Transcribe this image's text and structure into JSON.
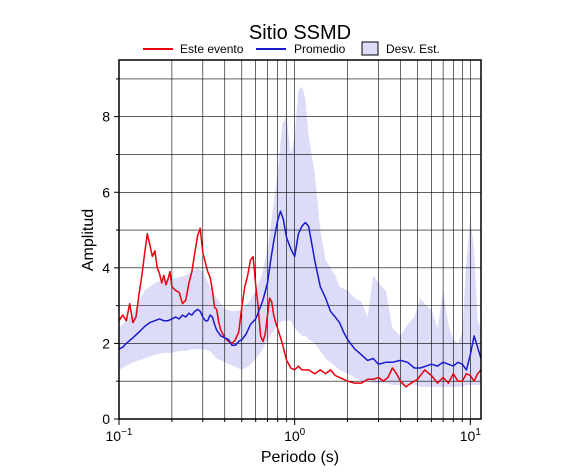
{
  "chart_data": {
    "type": "line",
    "title": "Sitio SSMD",
    "xlabel": "Periodo (s)",
    "ylabel": "Amplitud",
    "xscale": "log",
    "xlim": [
      0.1,
      11.5
    ],
    "ylim": [
      0,
      9.5
    ],
    "grid": true,
    "legend_position": "top",
    "x_ticks": [
      {
        "value": 0.1,
        "base": "10",
        "exp": "−1"
      },
      {
        "value": 1,
        "base": "10",
        "exp": "0"
      },
      {
        "value": 10,
        "base": "10",
        "exp": "1"
      }
    ],
    "y_ticks": [
      0,
      2,
      4,
      6,
      8
    ],
    "series": [
      {
        "name": "Este evento",
        "color": "#e8000b",
        "x": [
          0.1,
          0.105,
          0.11,
          0.115,
          0.12,
          0.125,
          0.13,
          0.135,
          0.14,
          0.145,
          0.15,
          0.155,
          0.16,
          0.165,
          0.17,
          0.175,
          0.18,
          0.185,
          0.19,
          0.195,
          0.2,
          0.21,
          0.22,
          0.23,
          0.24,
          0.25,
          0.26,
          0.27,
          0.28,
          0.29,
          0.3,
          0.31,
          0.32,
          0.33,
          0.34,
          0.35,
          0.36,
          0.37,
          0.38,
          0.4,
          0.42,
          0.44,
          0.46,
          0.48,
          0.5,
          0.52,
          0.54,
          0.56,
          0.58,
          0.6,
          0.62,
          0.64,
          0.66,
          0.68,
          0.7,
          0.72,
          0.74,
          0.76,
          0.78,
          0.8,
          0.85,
          0.9,
          0.95,
          1.0,
          1.05,
          1.1,
          1.2,
          1.3,
          1.4,
          1.5,
          1.6,
          1.7,
          1.8,
          1.9,
          2.0,
          2.2,
          2.4,
          2.6,
          2.8,
          3.0,
          3.2,
          3.4,
          3.6,
          3.8,
          4.0,
          4.3,
          4.6,
          5.0,
          5.5,
          6.0,
          6.5,
          7.0,
          7.5,
          8.0,
          8.5,
          9.0,
          9.5,
          10.0,
          10.5,
          11.0,
          11.5
        ],
        "values": [
          2.6,
          2.75,
          2.6,
          3.05,
          2.55,
          2.7,
          3.3,
          3.8,
          4.4,
          4.9,
          4.6,
          4.3,
          4.45,
          4.0,
          3.85,
          3.6,
          3.8,
          3.55,
          3.7,
          3.9,
          3.5,
          3.4,
          3.35,
          3.05,
          3.15,
          3.6,
          3.9,
          4.4,
          4.85,
          5.05,
          4.4,
          4.15,
          3.9,
          3.75,
          3.4,
          2.95,
          2.9,
          2.55,
          2.35,
          2.15,
          2.05,
          2.0,
          2.1,
          2.3,
          2.95,
          3.5,
          3.8,
          4.2,
          4.3,
          3.55,
          2.95,
          2.2,
          2.05,
          2.25,
          2.75,
          3.2,
          3.1,
          2.75,
          2.55,
          2.4,
          2.0,
          1.55,
          1.35,
          1.3,
          1.4,
          1.3,
          1.3,
          1.2,
          1.3,
          1.2,
          1.3,
          1.15,
          1.1,
          1.05,
          1.0,
          0.95,
          0.95,
          1.05,
          1.05,
          1.1,
          1.0,
          1.1,
          1.35,
          1.2,
          1.0,
          0.85,
          0.95,
          1.05,
          1.3,
          1.15,
          0.95,
          1.1,
          0.95,
          1.2,
          1.0,
          1.0,
          1.2,
          1.15,
          1.0,
          1.2,
          1.3
        ]
      },
      {
        "name": "Promedio",
        "color": "#1a1acd",
        "x": [
          0.1,
          0.105,
          0.11,
          0.12,
          0.13,
          0.14,
          0.15,
          0.16,
          0.17,
          0.18,
          0.19,
          0.2,
          0.21,
          0.22,
          0.23,
          0.24,
          0.25,
          0.26,
          0.27,
          0.28,
          0.29,
          0.3,
          0.31,
          0.32,
          0.33,
          0.34,
          0.35,
          0.36,
          0.38,
          0.4,
          0.42,
          0.44,
          0.46,
          0.48,
          0.5,
          0.53,
          0.56,
          0.6,
          0.63,
          0.66,
          0.7,
          0.73,
          0.76,
          0.8,
          0.83,
          0.86,
          0.9,
          0.95,
          1.0,
          1.05,
          1.1,
          1.15,
          1.2,
          1.25,
          1.3,
          1.4,
          1.5,
          1.6,
          1.7,
          1.8,
          1.9,
          2.0,
          2.2,
          2.4,
          2.6,
          2.8,
          3.0,
          3.3,
          3.6,
          4.0,
          4.4,
          4.8,
          5.2,
          5.6,
          6.0,
          6.5,
          7.0,
          7.5,
          8.0,
          8.5,
          9.0,
          9.5,
          10.0,
          10.5,
          11.0,
          11.5
        ],
        "values": [
          1.85,
          1.9,
          2.0,
          2.15,
          2.3,
          2.45,
          2.55,
          2.6,
          2.65,
          2.6,
          2.6,
          2.65,
          2.7,
          2.65,
          2.75,
          2.7,
          2.8,
          2.75,
          2.85,
          2.9,
          2.85,
          2.7,
          2.6,
          2.6,
          2.75,
          2.7,
          2.5,
          2.35,
          2.2,
          2.15,
          2.1,
          1.95,
          1.95,
          2.05,
          2.1,
          2.25,
          2.5,
          2.65,
          2.9,
          3.15,
          3.6,
          4.2,
          4.7,
          5.25,
          5.5,
          5.3,
          4.8,
          4.5,
          4.3,
          4.9,
          5.1,
          5.2,
          5.1,
          4.65,
          4.2,
          3.5,
          3.2,
          2.85,
          2.7,
          2.55,
          2.3,
          2.1,
          1.85,
          1.7,
          1.55,
          1.6,
          1.45,
          1.5,
          1.5,
          1.55,
          1.5,
          1.35,
          1.35,
          1.4,
          1.45,
          1.4,
          1.5,
          1.45,
          1.4,
          1.5,
          1.45,
          1.3,
          1.7,
          2.2,
          1.9,
          1.6
        ]
      }
    ],
    "band": {
      "name": "Desv. Est.",
      "color": "#dcdcf8",
      "x": [
        0.1,
        0.12,
        0.14,
        0.16,
        0.18,
        0.2,
        0.22,
        0.24,
        0.26,
        0.28,
        0.3,
        0.33,
        0.36,
        0.4,
        0.45,
        0.5,
        0.55,
        0.6,
        0.65,
        0.7,
        0.75,
        0.8,
        0.85,
        0.9,
        0.95,
        1.0,
        1.05,
        1.1,
        1.15,
        1.2,
        1.3,
        1.4,
        1.5,
        1.6,
        1.7,
        1.8,
        2.0,
        2.2,
        2.4,
        2.6,
        2.8,
        3.0,
        3.3,
        3.6,
        4.0,
        4.4,
        4.8,
        5.2,
        5.6,
        6.0,
        6.5,
        7.0,
        7.5,
        8.0,
        8.5,
        9.0,
        9.5,
        10.0,
        10.5,
        11.0,
        11.5
      ],
      "upper": [
        2.4,
        2.8,
        3.4,
        3.6,
        3.7,
        3.7,
        3.75,
        3.8,
        3.9,
        4.0,
        3.9,
        3.5,
        3.2,
        2.9,
        2.85,
        2.9,
        3.1,
        3.4,
        3.8,
        4.5,
        5.5,
        6.5,
        7.8,
        8.0,
        7.0,
        7.5,
        8.7,
        8.8,
        8.5,
        7.5,
        6.5,
        5.0,
        4.2,
        4.0,
        3.8,
        3.5,
        3.4,
        3.2,
        3.1,
        2.7,
        3.8,
        3.6,
        3.4,
        2.4,
        2.2,
        2.5,
        2.7,
        3.2,
        3.0,
        2.9,
        2.4,
        3.4,
        2.5,
        2.1,
        2.0,
        2.3,
        4.2,
        5.3,
        4.5,
        2.6,
        2.4
      ],
      "lower": [
        1.3,
        1.5,
        1.6,
        1.7,
        1.75,
        1.75,
        1.8,
        1.8,
        1.85,
        1.85,
        1.85,
        1.8,
        1.6,
        1.5,
        1.4,
        1.3,
        1.4,
        1.6,
        1.8,
        2.1,
        2.3,
        2.5,
        2.6,
        2.6,
        2.6,
        2.4,
        2.3,
        2.2,
        2.2,
        2.1,
        2.0,
        1.8,
        1.6,
        1.5,
        1.4,
        1.3,
        1.2,
        1.1,
        1.0,
        1.0,
        0.95,
        0.95,
        0.95,
        0.9,
        0.9,
        0.9,
        0.9,
        0.85,
        0.85,
        0.85,
        0.85,
        0.85,
        0.85,
        0.85,
        0.85,
        0.85,
        0.9,
        0.9,
        0.9,
        0.9,
        0.9
      ]
    }
  }
}
